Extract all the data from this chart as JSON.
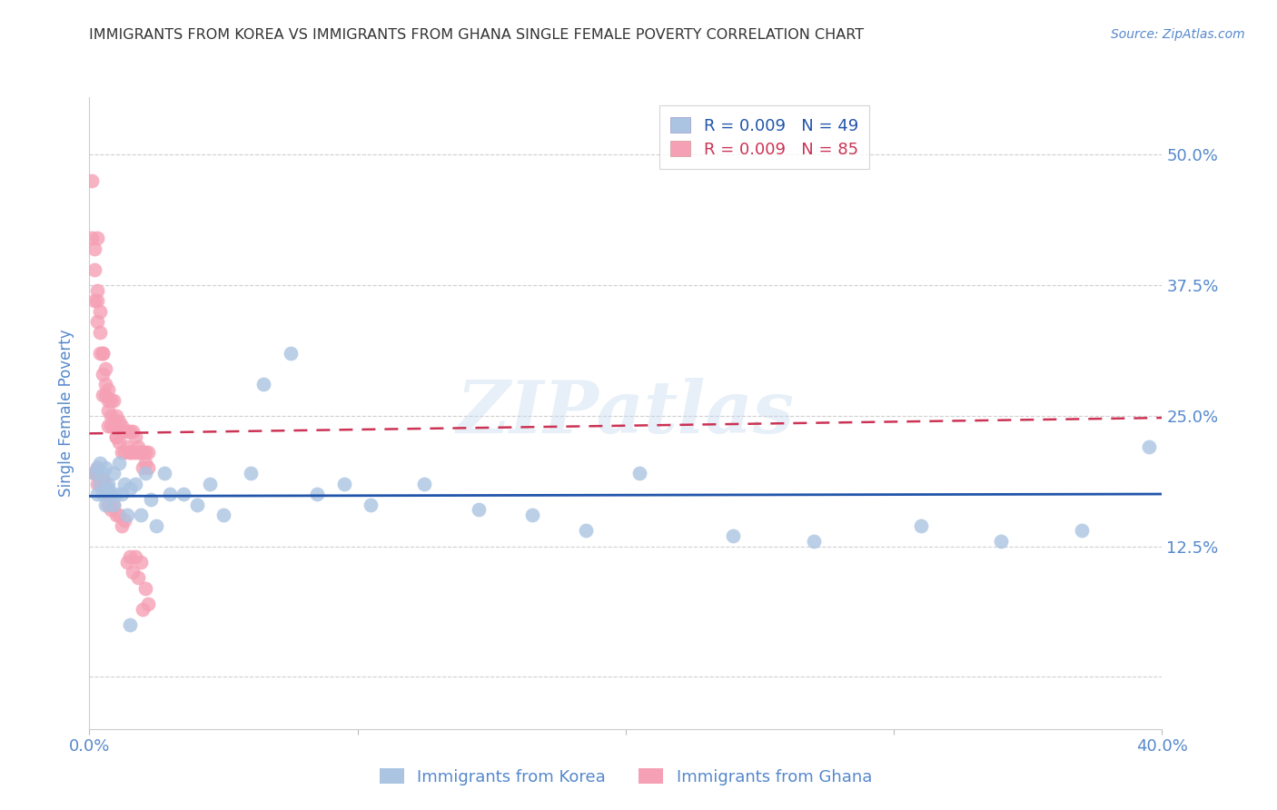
{
  "title": "IMMIGRANTS FROM KOREA VS IMMIGRANTS FROM GHANA SINGLE FEMALE POVERTY CORRELATION CHART",
  "source": "Source: ZipAtlas.com",
  "ylabel": "Single Female Poverty",
  "yticks": [
    0.0,
    0.125,
    0.25,
    0.375,
    0.5
  ],
  "ytick_labels": [
    "",
    "12.5%",
    "25.0%",
    "37.5%",
    "50.0%"
  ],
  "xlim": [
    0.0,
    0.4
  ],
  "ylim": [
    -0.05,
    0.555
  ],
  "legend_korea": "R = 0.009   N = 49",
  "legend_ghana": "R = 0.009   N = 85",
  "legend_label_korea": "Immigrants from Korea",
  "legend_label_ghana": "Immigrants from Ghana",
  "korea_color": "#aac4e2",
  "ghana_color": "#f5a0b5",
  "korea_line_color": "#2255aa",
  "ghana_line_color": "#cc3355",
  "background_color": "#ffffff",
  "grid_color": "#bbbbbb",
  "axis_label_color": "#5588cc",
  "title_color": "#333333",
  "watermark": "ZIPatlas",
  "korea_x": [
    0.002,
    0.003,
    0.003,
    0.004,
    0.004,
    0.005,
    0.005,
    0.006,
    0.006,
    0.007,
    0.007,
    0.008,
    0.009,
    0.009,
    0.01,
    0.011,
    0.012,
    0.013,
    0.014,
    0.015,
    0.017,
    0.019,
    0.021,
    0.023,
    0.025,
    0.028,
    0.03,
    0.035,
    0.04,
    0.045,
    0.05,
    0.06,
    0.065,
    0.075,
    0.085,
    0.095,
    0.105,
    0.125,
    0.145,
    0.165,
    0.185,
    0.205,
    0.24,
    0.27,
    0.31,
    0.34,
    0.37,
    0.395,
    0.015
  ],
  "korea_y": [
    0.195,
    0.2,
    0.175,
    0.185,
    0.205,
    0.175,
    0.195,
    0.2,
    0.165,
    0.18,
    0.185,
    0.175,
    0.195,
    0.165,
    0.175,
    0.205,
    0.175,
    0.185,
    0.155,
    0.18,
    0.185,
    0.155,
    0.195,
    0.17,
    0.145,
    0.195,
    0.175,
    0.175,
    0.165,
    0.185,
    0.155,
    0.195,
    0.28,
    0.31,
    0.175,
    0.185,
    0.165,
    0.185,
    0.16,
    0.155,
    0.14,
    0.195,
    0.135,
    0.13,
    0.145,
    0.13,
    0.14,
    0.22,
    0.05
  ],
  "ghana_x": [
    0.001,
    0.001,
    0.002,
    0.002,
    0.002,
    0.003,
    0.003,
    0.003,
    0.003,
    0.004,
    0.004,
    0.004,
    0.005,
    0.005,
    0.005,
    0.005,
    0.006,
    0.006,
    0.006,
    0.007,
    0.007,
    0.007,
    0.007,
    0.008,
    0.008,
    0.008,
    0.009,
    0.009,
    0.009,
    0.01,
    0.01,
    0.01,
    0.011,
    0.011,
    0.012,
    0.012,
    0.012,
    0.013,
    0.013,
    0.014,
    0.014,
    0.015,
    0.015,
    0.015,
    0.016,
    0.016,
    0.017,
    0.017,
    0.018,
    0.018,
    0.019,
    0.019,
    0.02,
    0.02,
    0.021,
    0.021,
    0.022,
    0.022,
    0.002,
    0.002,
    0.003,
    0.003,
    0.004,
    0.004,
    0.005,
    0.005,
    0.006,
    0.006,
    0.007,
    0.007,
    0.008,
    0.009,
    0.01,
    0.011,
    0.012,
    0.013,
    0.014,
    0.015,
    0.016,
    0.017,
    0.018,
    0.019,
    0.02,
    0.021,
    0.022
  ],
  "ghana_y": [
    0.475,
    0.42,
    0.39,
    0.36,
    0.41,
    0.37,
    0.34,
    0.36,
    0.42,
    0.35,
    0.33,
    0.31,
    0.31,
    0.29,
    0.27,
    0.31,
    0.28,
    0.27,
    0.295,
    0.265,
    0.255,
    0.24,
    0.275,
    0.25,
    0.265,
    0.24,
    0.245,
    0.265,
    0.24,
    0.23,
    0.25,
    0.23,
    0.245,
    0.225,
    0.24,
    0.215,
    0.235,
    0.215,
    0.235,
    0.22,
    0.235,
    0.215,
    0.235,
    0.215,
    0.215,
    0.235,
    0.215,
    0.23,
    0.215,
    0.22,
    0.215,
    0.215,
    0.215,
    0.2,
    0.205,
    0.215,
    0.215,
    0.2,
    0.195,
    0.195,
    0.2,
    0.185,
    0.19,
    0.185,
    0.185,
    0.19,
    0.185,
    0.175,
    0.165,
    0.175,
    0.16,
    0.165,
    0.155,
    0.155,
    0.145,
    0.15,
    0.11,
    0.115,
    0.1,
    0.115,
    0.095,
    0.11,
    0.065,
    0.085,
    0.07
  ],
  "korea_trend_y0": 0.173,
  "korea_trend_y1": 0.175,
  "ghana_trend_y0": 0.233,
  "ghana_trend_y1": 0.248
}
